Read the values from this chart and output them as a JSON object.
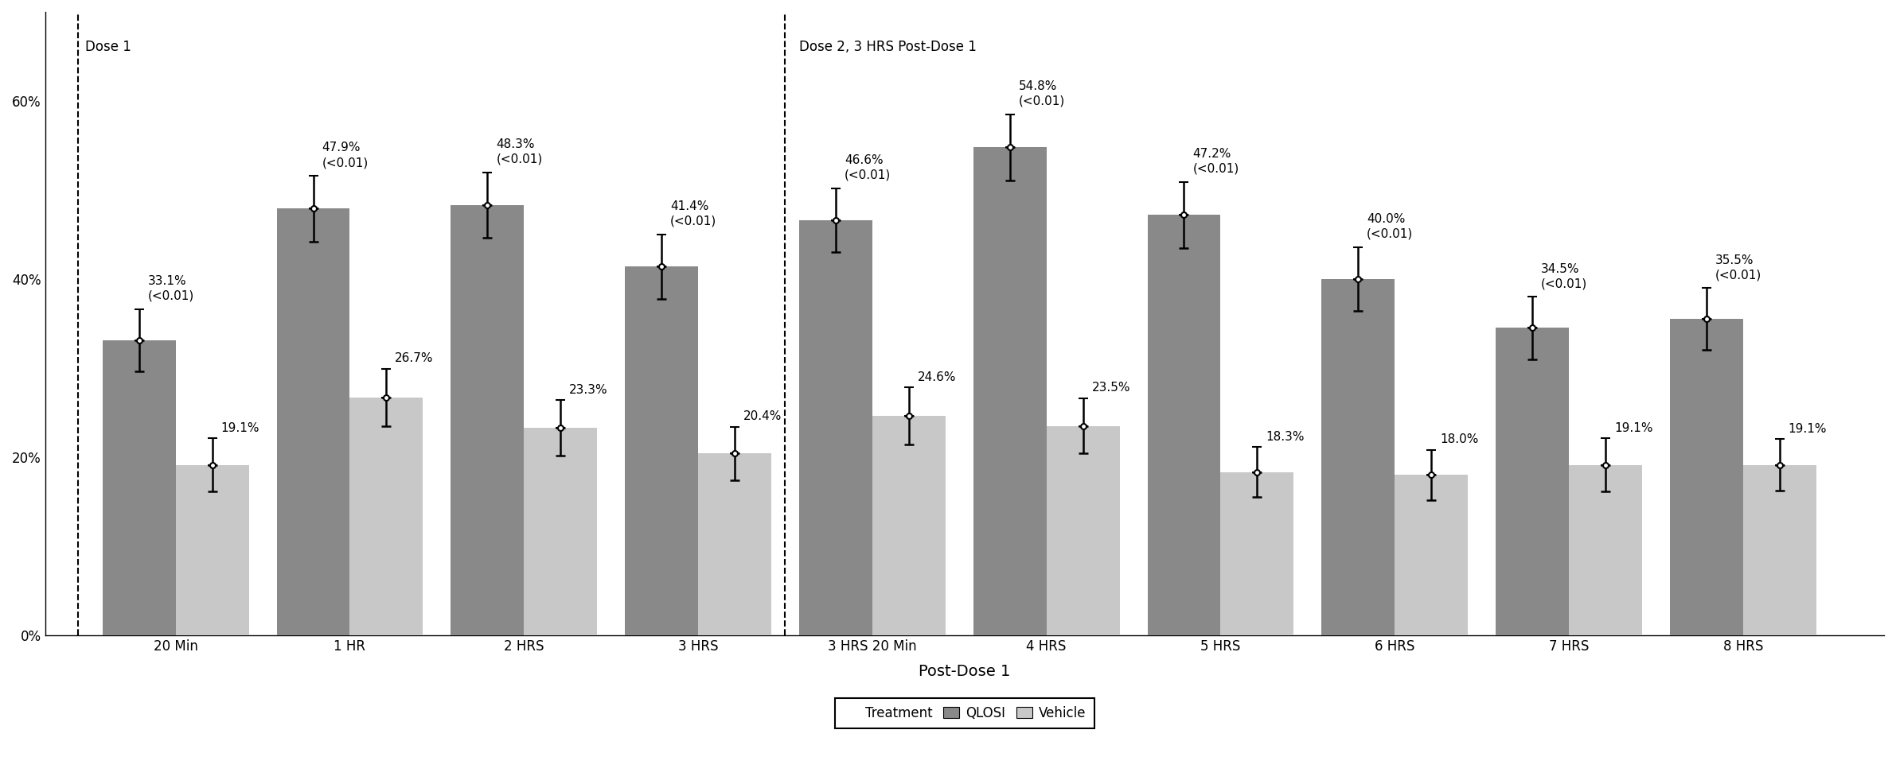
{
  "categories": [
    "20 Min",
    "1 HR",
    "2 HRS",
    "3 HRS",
    "3 HRS 20 Min",
    "4 HRS",
    "5 HRS",
    "6 HRS",
    "7 HRS",
    "8 HRS"
  ],
  "qlosi_values": [
    33.1,
    47.9,
    48.3,
    41.4,
    46.6,
    54.8,
    47.2,
    40.0,
    34.5,
    35.5
  ],
  "vehicle_values": [
    19.1,
    26.7,
    23.3,
    20.4,
    24.6,
    23.5,
    18.3,
    18.0,
    19.1,
    19.1
  ],
  "qlosi_errors": [
    3.5,
    3.7,
    3.7,
    3.6,
    3.6,
    3.7,
    3.7,
    3.6,
    3.5,
    3.5
  ],
  "vehicle_errors": [
    3.0,
    3.2,
    3.1,
    3.0,
    3.2,
    3.1,
    2.8,
    2.8,
    3.0,
    2.9
  ],
  "qlosi_labels": [
    "33.1%\n(<0.01)",
    "47.9%\n(<0.01)",
    "48.3%\n(<0.01)",
    "41.4%\n(<0.01)",
    "46.6%\n(<0.01)",
    "54.8%\n(<0.01)",
    "47.2%\n(<0.01)",
    "40.0%\n(<0.01)",
    "34.5%\n(<0.01)",
    "35.5%\n(<0.01)"
  ],
  "vehicle_labels": [
    "19.1%",
    "26.7%",
    "23.3%",
    "20.4%",
    "24.6%",
    "23.5%",
    "18.3%",
    "18.0%",
    "19.1%",
    "19.1%"
  ],
  "qlosi_color": "#898989",
  "vehicle_color": "#c8c8c8",
  "bar_width": 0.42,
  "dose2_label": "Dose 2, 3 HRS Post-Dose 1",
  "dose1_label": "Dose 1",
  "xlabel": "Post-Dose 1",
  "yticks": [
    0,
    20,
    40,
    60
  ],
  "ytick_labels": [
    "0%",
    "20%",
    "40%",
    "60%"
  ],
  "ylim": [
    0,
    70
  ],
  "legend_labels": [
    "Treatment",
    "QLOSI",
    "Vehicle"
  ],
  "background_color": "#ffffff",
  "font_size_labels": 11,
  "font_size_axis": 12,
  "font_size_dose": 12
}
